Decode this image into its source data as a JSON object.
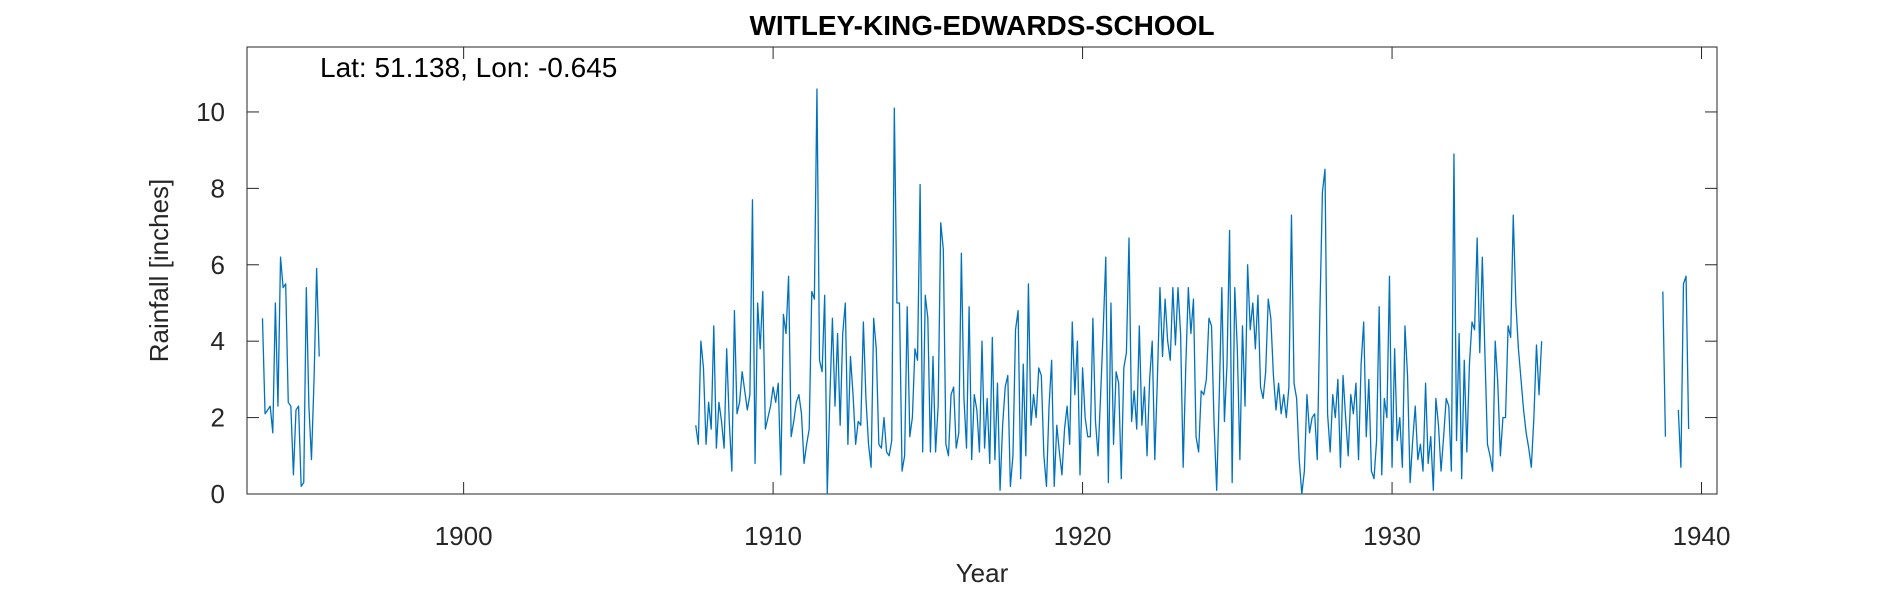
{
  "chart_data": {
    "type": "line",
    "title": "WITLEY-KING-EDWARDS-SCHOOL",
    "annotation": "Lat: 51.138, Lon: -0.645",
    "xlabel": "Year",
    "ylabel": "Rainfall [inches]",
    "xlim": [
      1893,
      1940.5
    ],
    "ylim": [
      0,
      11.7
    ],
    "xticks": [
      1900,
      1910,
      1920,
      1930,
      1940
    ],
    "yticks": [
      0,
      2,
      4,
      6,
      8,
      10
    ],
    "grid": false,
    "line_color": "#0072BD",
    "axis_color": "#262626",
    "series": [
      {
        "segments": [
          {
            "start": 1893.5,
            "values": [
              4.6,
              2.1,
              2.2,
              2.3,
              1.6,
              5.0,
              2.3,
              6.2,
              5.4,
              5.5,
              2.4,
              2.3,
              0.5,
              2.2,
              2.3,
              0.2,
              0.3,
              5.4,
              2.3,
              0.9,
              3.0,
              5.9,
              3.6
            ]
          },
          {
            "start": 1907.5,
            "values": [
              1.8,
              1.3,
              4.0,
              3.3,
              1.3,
              2.4,
              1.7,
              4.4,
              1.2,
              2.4,
              1.9,
              1.2,
              3.8,
              1.9,
              0.6,
              4.8,
              2.1,
              2.4,
              3.2,
              2.7,
              2.2,
              2.6,
              7.7,
              0.8,
              5.0,
              3.8,
              5.3,
              1.7,
              2.0,
              2.3,
              2.8,
              2.4,
              2.9,
              0.5,
              4.7,
              4.2,
              5.7,
              1.5,
              1.9,
              2.4,
              2.6,
              2.1,
              0.8,
              1.3,
              1.7,
              5.3,
              5.1,
              10.6,
              3.5,
              3.2,
              5.2,
              0.0,
              2.5,
              4.6,
              2.3,
              4.2,
              1.8,
              4.2,
              5.0,
              1.3,
              3.6,
              2.6,
              1.3,
              1.9,
              1.8,
              4.5,
              2.5,
              1.3,
              0.7,
              4.6,
              3.8,
              1.3,
              1.2,
              2.0,
              1.1,
              1.0,
              1.4,
              10.1,
              5.0,
              5.0,
              0.6,
              1.0,
              4.9,
              1.5,
              2.0,
              3.8,
              3.5,
              8.1,
              1.1,
              5.2,
              4.6,
              1.1,
              3.6,
              1.1,
              2.3,
              7.1,
              6.4,
              1.3,
              1.0,
              2.6,
              2.8,
              1.2,
              1.6,
              6.3,
              2.5,
              1.2,
              4.9,
              0.9,
              2.6,
              2.2,
              1.1,
              4.0,
              1.2,
              2.5,
              0.8,
              4.1,
              0.9,
              2.9,
              0.1,
              1.8,
              2.8,
              3.1,
              0.2,
              1.0,
              4.3,
              4.8,
              0.4,
              3.4,
              1.0,
              5.5,
              1.8,
              2.6,
              2.0,
              3.3,
              3.1,
              1.0,
              0.2,
              2.3,
              3.5,
              0.2,
              1.8,
              1.1,
              0.5,
              1.7,
              2.3,
              1.3,
              4.5,
              2.6,
              4.0,
              0.5,
              3.3,
              2.0,
              1.5,
              1.5,
              4.6,
              1.9,
              1.0,
              2.6,
              4.3,
              6.2,
              0.3,
              5.0,
              1.3,
              3.2,
              2.9,
              0.4,
              3.3,
              3.7,
              6.7,
              1.9,
              2.7,
              1.7,
              4.4,
              1.8,
              2.8,
              1.0,
              3.0,
              4.0,
              0.9,
              3.0,
              5.4,
              3.6,
              5.1,
              4.0,
              3.5,
              5.4,
              3.9,
              5.4,
              4.2,
              0.7,
              3.3,
              5.4,
              4.2,
              5.1,
              1.5,
              1.1,
              2.7,
              2.6,
              3.0,
              4.6,
              4.4,
              1.8,
              0.1,
              2.6,
              5.4,
              1.9,
              3.4,
              6.9,
              0.3,
              5.4,
              3.8,
              0.9,
              4.4,
              2.3,
              6.0,
              4.3,
              5.0,
              3.8,
              5.2,
              2.8,
              2.5,
              3.2,
              5.1,
              4.6,
              3.1,
              2.2,
              2.9,
              2.1,
              2.6,
              2.0,
              2.8,
              7.3,
              2.9,
              2.5,
              0.9,
              0.0,
              0.6,
              2.6,
              1.6,
              2.0,
              2.1,
              0.9,
              4.7,
              7.9,
              8.5,
              2.1,
              1.1,
              2.6,
              2.0,
              3.0,
              0.7,
              3.1,
              2.0,
              1.0,
              2.6,
              2.1,
              2.9,
              0.9,
              3.4,
              4.5,
              1.5,
              3.0,
              0.6,
              0.4,
              1.4,
              4.9,
              0.5,
              2.5,
              2.0,
              5.7,
              0.7,
              3.8,
              1.4,
              2.0,
              0.7,
              4.4,
              3.1,
              0.3,
              1.4,
              2.3,
              0.9,
              1.3,
              0.6,
              2.9,
              0.8,
              1.5,
              0.1,
              2.5,
              1.8,
              0.6,
              1.5,
              2.5,
              2.3,
              0.6,
              8.9,
              1.4,
              4.2,
              0.4,
              3.5,
              1.1,
              3.4,
              4.5,
              4.3,
              6.7,
              3.7,
              6.2,
              3.7,
              1.3,
              1.0,
              0.6,
              4.0,
              2.9,
              1.0,
              2.0,
              2.0,
              4.4,
              4.1,
              7.3,
              5.0,
              3.8,
              3.0,
              2.2,
              1.6,
              1.2,
              0.7,
              2.0,
              3.9,
              2.6,
              4.0
            ]
          },
          {
            "start": 1938.75,
            "values": [
              5.3,
              1.5
            ]
          },
          {
            "start": 1939.25,
            "values": [
              2.2,
              0.7,
              5.5,
              5.7,
              1.7
            ]
          }
        ]
      }
    ]
  }
}
